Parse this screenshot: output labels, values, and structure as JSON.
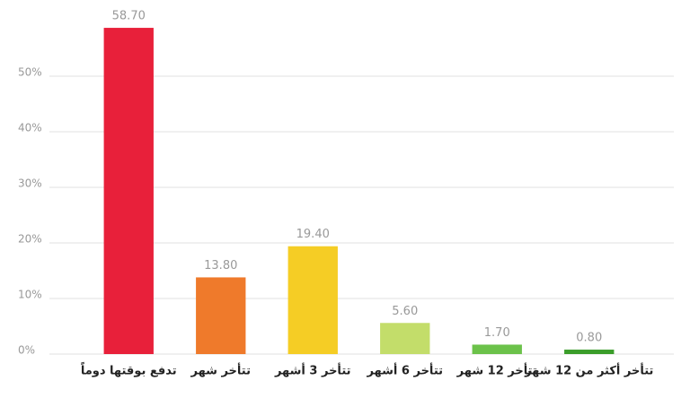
{
  "chart_data": {
    "type": "bar",
    "categories": [
      "تدفع بوقتها دوماً",
      "تتأخر شهر",
      "تتأخر 3 أشهر",
      "تتأخر 6 أشهر",
      "تتأخر 12 شهر",
      "تتأخر أكثر من 12 شهر"
    ],
    "values": [
      58.7,
      13.8,
      19.4,
      5.6,
      1.7,
      0.8
    ],
    "value_labels": [
      "58.70",
      "13.80",
      "19.40",
      "5.60",
      "1.70",
      "0.80"
    ],
    "colors": [
      "#e8203a",
      "#ef7a2b",
      "#f5cd25",
      "#c3dd6a",
      "#6cc24a",
      "#3a9d2a"
    ],
    "ylim": [
      0,
      60
    ],
    "yticks": [
      {
        "value": 0,
        "label": "0%"
      },
      {
        "value": 10,
        "label": "10%"
      },
      {
        "value": 20,
        "label": "20%"
      },
      {
        "value": 30,
        "label": "30%"
      },
      {
        "value": 40,
        "label": "40%"
      },
      {
        "value": 50,
        "label": "50%"
      }
    ],
    "grid": true
  }
}
